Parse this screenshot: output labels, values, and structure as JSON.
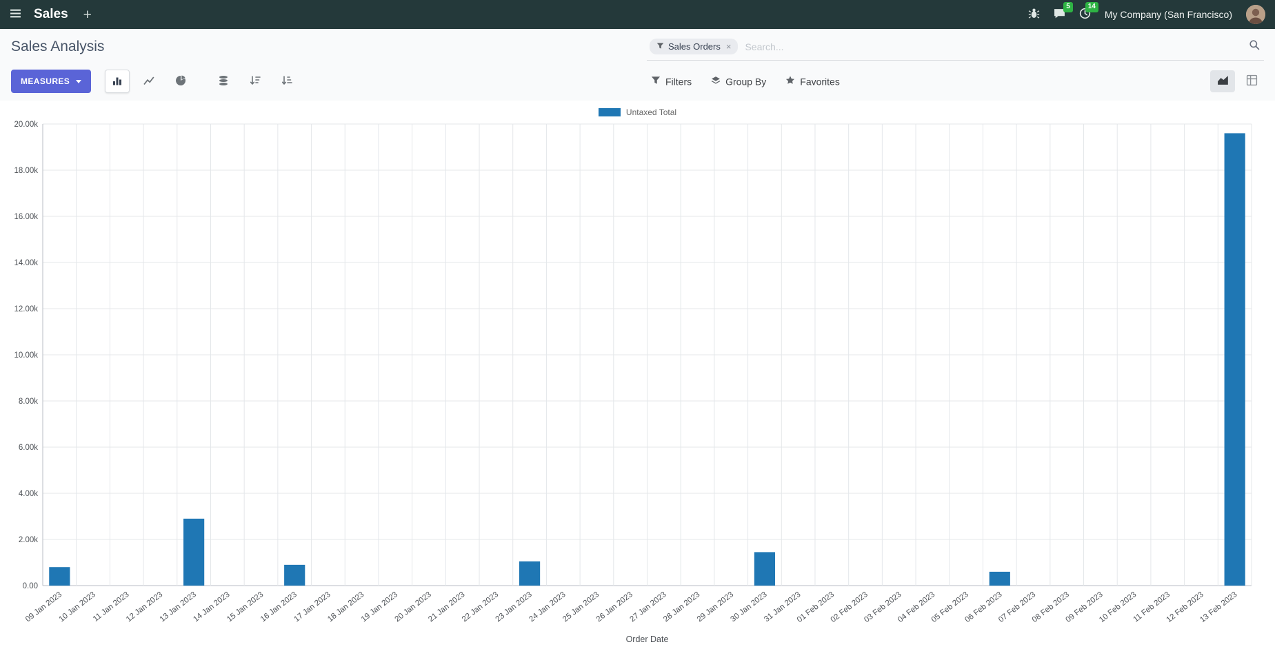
{
  "navbar": {
    "app_menu_label": "Sales",
    "plus_label": "+",
    "messages_badge": "5",
    "activities_badge": "14",
    "company": "My Company (San Francisco)"
  },
  "control_panel": {
    "title": "Sales Analysis",
    "search": {
      "facet": "Sales Orders",
      "remove_facet_label": "×",
      "placeholder": "Search..."
    },
    "measures_label": "MEASURES",
    "filters_label": "Filters",
    "group_by_label": "Group By",
    "favorites_label": "Favorites"
  },
  "colors": {
    "navbar_bg": "#24393a",
    "primary_button": "#5a64d7",
    "notification_badge": "#2eb344",
    "bar_series": "#1f77b4"
  },
  "chart_data": {
    "type": "bar",
    "title": "",
    "legend": [
      "Untaxed Total"
    ],
    "xlabel": "Order Date",
    "ylabel": "",
    "ylim": [
      0,
      20000
    ],
    "ytick_step": 2000,
    "grid": true,
    "legend_position": "top",
    "bar_color": "#1f77b4",
    "categories": [
      "09 Jan 2023",
      "10 Jan 2023",
      "11 Jan 2023",
      "12 Jan 2023",
      "13 Jan 2023",
      "14 Jan 2023",
      "15 Jan 2023",
      "16 Jan 2023",
      "17 Jan 2023",
      "18 Jan 2023",
      "19 Jan 2023",
      "20 Jan 2023",
      "21 Jan 2023",
      "22 Jan 2023",
      "23 Jan 2023",
      "24 Jan 2023",
      "25 Jan 2023",
      "26 Jan 2023",
      "27 Jan 2023",
      "28 Jan 2023",
      "29 Jan 2023",
      "30 Jan 2023",
      "31 Jan 2023",
      "01 Feb 2023",
      "02 Feb 2023",
      "03 Feb 2023",
      "04 Feb 2023",
      "05 Feb 2023",
      "06 Feb 2023",
      "07 Feb 2023",
      "08 Feb 2023",
      "09 Feb 2023",
      "10 Feb 2023",
      "11 Feb 2023",
      "12 Feb 2023",
      "13 Feb 2023"
    ],
    "values": [
      800,
      0,
      0,
      0,
      2900,
      0,
      0,
      900,
      0,
      0,
      0,
      0,
      0,
      0,
      1050,
      0,
      0,
      0,
      0,
      0,
      0,
      1450,
      0,
      0,
      0,
      0,
      0,
      0,
      600,
      0,
      0,
      0,
      0,
      0,
      0,
      19600
    ]
  }
}
